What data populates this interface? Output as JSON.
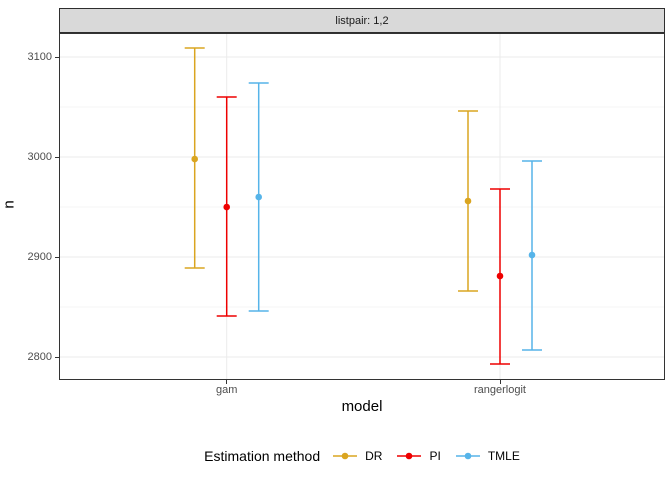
{
  "strip": {
    "label": "listpair: 1,2"
  },
  "axes": {
    "y_title": "n",
    "x_title": "model"
  },
  "legend": {
    "title": "Estimation method"
  },
  "colors": {
    "strip_bg": "#D9D9D9",
    "panel_border": "#333333",
    "grid_major": "#EBEBEB",
    "grid_minor": "#F5F5F5",
    "tick_text": "#4d4d4d"
  },
  "chart_data": {
    "type": "scatter",
    "subtype": "pointrange-errorbar",
    "title": "listpair: 1,2",
    "facet_label": "listpair: 1,2",
    "xlabel": "model",
    "ylabel": "n",
    "categories": [
      "gam",
      "rangerlogit"
    ],
    "series": [
      {
        "name": "DR",
        "color": "#DAA520",
        "points": [
          {
            "category": "gam",
            "y": 2998,
            "ymin": 2889,
            "ymax": 3109
          },
          {
            "category": "rangerlogit",
            "y": 2956,
            "ymin": 2866,
            "ymax": 3046
          }
        ]
      },
      {
        "name": "PI",
        "color": "#EE0000",
        "points": [
          {
            "category": "gam",
            "y": 2950,
            "ymin": 2841,
            "ymax": 3060
          },
          {
            "category": "rangerlogit",
            "y": 2881,
            "ymin": 2793,
            "ymax": 2968
          }
        ]
      },
      {
        "name": "TMLE",
        "color": "#56B4E9",
        "points": [
          {
            "category": "gam",
            "y": 2960,
            "ymin": 2846,
            "ymax": 3074
          },
          {
            "category": "rangerlogit",
            "y": 2902,
            "ymin": 2807,
            "ymax": 2996
          }
        ]
      }
    ],
    "ylim": [
      2778,
      3123
    ],
    "y_major_ticks": [
      3100,
      3000,
      2900,
      2800
    ],
    "y_minor_gridlines": [
      3050,
      2950,
      2850
    ],
    "grid": true,
    "legend_position": "bottom",
    "legend_title": "Estimation method"
  }
}
